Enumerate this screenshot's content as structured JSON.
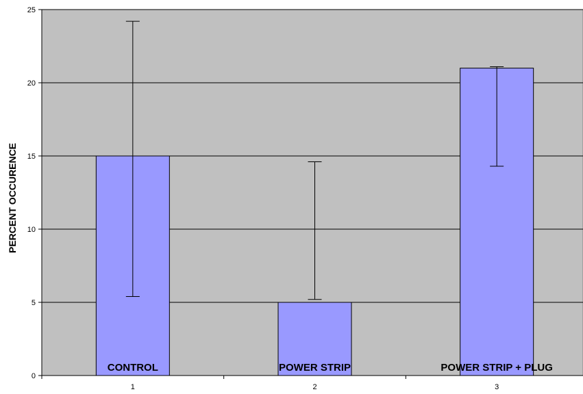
{
  "chart_data": {
    "type": "bar",
    "categories": [
      "1",
      "2",
      "3"
    ],
    "bar_labels": [
      "CONTROL",
      "POWER STRIP",
      "POWER STRIP + PLUG"
    ],
    "values": [
      15,
      5,
      21
    ],
    "error_low": [
      5.4,
      5.2,
      14.3
    ],
    "error_high": [
      24.2,
      14.6,
      21.1
    ],
    "ylabel": "PERCENT OCCURENCE",
    "xlabel": "",
    "ylim": [
      0,
      25
    ],
    "yticks": [
      0,
      5,
      10,
      15,
      20,
      25
    ],
    "grid": true,
    "colors": {
      "plot_background": "#c0c0c0",
      "bar_fill": "#9999ff",
      "bar_stroke": "#000000",
      "gridline": "#000000"
    }
  }
}
